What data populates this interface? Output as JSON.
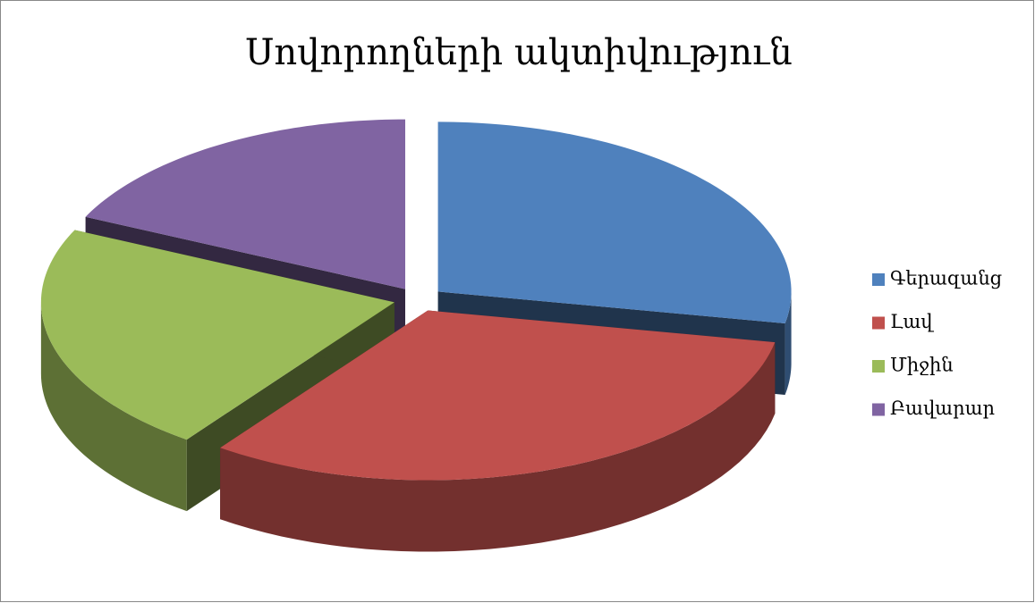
{
  "chart_data": {
    "type": "pie",
    "title": "Սովորողների ակտիվություն",
    "categories": [
      "Գերազանց",
      "Լավ",
      "Միջին",
      "Բավարար"
    ],
    "values": [
      28,
      32,
      22,
      18
    ],
    "colors": [
      "#4f81bd",
      "#c0504d",
      "#9bbb59",
      "#8064a2"
    ],
    "legend": "right"
  }
}
